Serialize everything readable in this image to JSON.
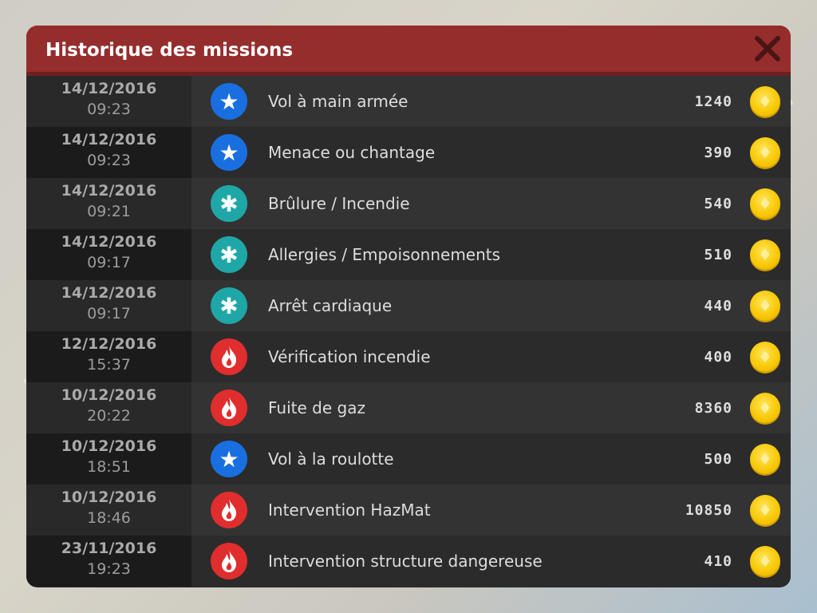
{
  "header": {
    "title": "Historique des missions"
  },
  "colors": {
    "police": "#1a6fe0",
    "medical": "#1fa7a7",
    "fire": "#e02d2d",
    "header": "#952d2d"
  },
  "missions": [
    {
      "date": "14/12/2016",
      "time": "09:23",
      "type": "police",
      "icon": "star-icon",
      "name": "Vol à main armée",
      "points": "1240"
    },
    {
      "date": "14/12/2016",
      "time": "09:23",
      "type": "police",
      "icon": "star-icon",
      "name": "Menace ou chantage",
      "points": "390"
    },
    {
      "date": "14/12/2016",
      "time": "09:21",
      "type": "medical",
      "icon": "asterisk-icon",
      "name": "Brûlure / Incendie",
      "points": "540"
    },
    {
      "date": "14/12/2016",
      "time": "09:17",
      "type": "medical",
      "icon": "asterisk-icon",
      "name": "Allergies / Empoisonnements",
      "points": "510"
    },
    {
      "date": "14/12/2016",
      "time": "09:17",
      "type": "medical",
      "icon": "asterisk-icon",
      "name": "Arrêt cardiaque",
      "points": "440"
    },
    {
      "date": "12/12/2016",
      "time": "15:37",
      "type": "fire",
      "icon": "flame-icon",
      "name": "Vérification incendie",
      "points": "400"
    },
    {
      "date": "10/12/2016",
      "time": "20:22",
      "type": "fire",
      "icon": "flame-icon",
      "name": "Fuite de gaz",
      "points": "8360"
    },
    {
      "date": "10/12/2016",
      "time": "18:51",
      "type": "police",
      "icon": "star-icon",
      "name": "Vol à la roulotte",
      "points": "500"
    },
    {
      "date": "10/12/2016",
      "time": "18:46",
      "type": "fire",
      "icon": "flame-icon",
      "name": "Intervention HazMat",
      "points": "10850"
    },
    {
      "date": "23/11/2016",
      "time": "19:23",
      "type": "fire",
      "icon": "flame-icon",
      "name": "Intervention structure dangereuse",
      "points": "410"
    }
  ]
}
